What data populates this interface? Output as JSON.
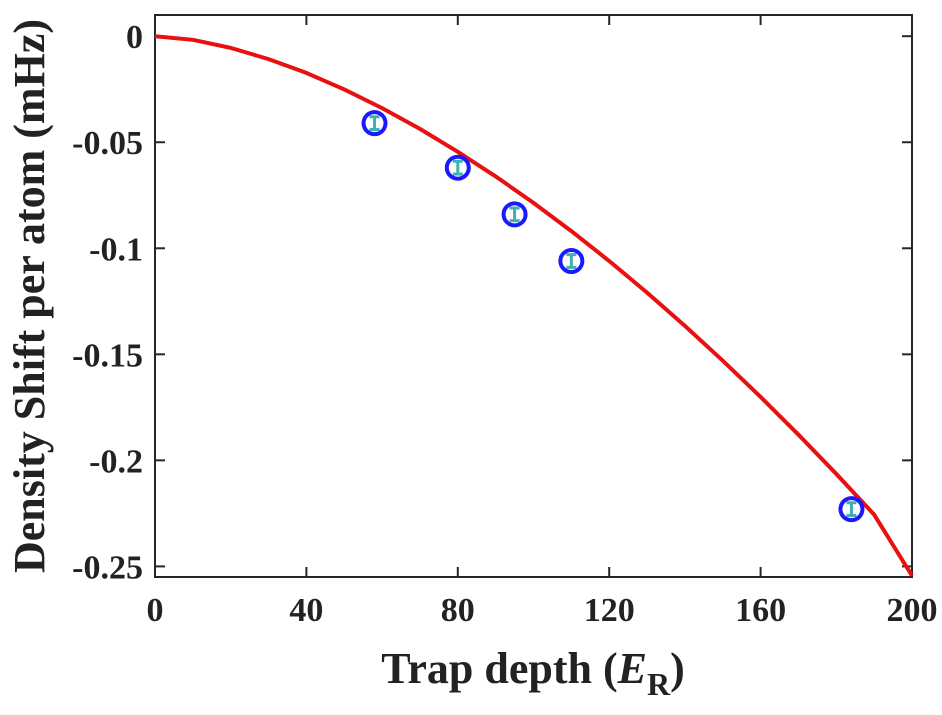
{
  "chart_data": {
    "type": "scatter",
    "title": "",
    "xlabel": {
      "prefix": "Trap depth (",
      "symbol": "E",
      "subscript": "R",
      "suffix": ")"
    },
    "ylabel": "Density Shift per atom (mHz)",
    "xlim": [
      0,
      200
    ],
    "ylim": [
      -0.255,
      0.01
    ],
    "xticks": [
      0,
      40,
      80,
      120,
      160,
      200
    ],
    "xtick_labels": [
      "0",
      "40",
      "80",
      "120",
      "160",
      "200"
    ],
    "yticks": [
      0,
      -0.05,
      -0.1,
      -0.15,
      -0.2,
      -0.25
    ],
    "ytick_labels": [
      "0",
      "-0.05",
      "-0.1",
      "-0.15",
      "-0.2",
      "-0.25"
    ],
    "grid": false,
    "series": [
      {
        "kind": "points",
        "x": [
          58,
          80,
          95,
          110,
          184
        ],
        "y": [
          -0.041,
          -0.062,
          -0.084,
          -0.106,
          -0.223
        ],
        "yerr": [
          0.003,
          0.003,
          0.003,
          0.003,
          0.003
        ],
        "marker_color": "#1a1aff",
        "errorbar_color": "#40b0b0"
      },
      {
        "kind": "curve",
        "x": [
          0,
          10,
          20,
          30,
          40,
          50,
          60,
          70,
          80,
          90,
          100,
          110,
          120,
          130,
          140,
          150,
          160,
          170,
          180,
          190,
          200
        ],
        "y": [
          0,
          -0.0017,
          -0.0055,
          -0.0108,
          -0.0173,
          -0.0251,
          -0.0339,
          -0.0437,
          -0.0545,
          -0.0661,
          -0.0786,
          -0.0919,
          -0.106,
          -0.1209,
          -0.1366,
          -0.153,
          -0.1701,
          -0.1879,
          -0.2064,
          -0.2256,
          -0.2544
        ],
        "color": "#e81010"
      }
    ]
  }
}
